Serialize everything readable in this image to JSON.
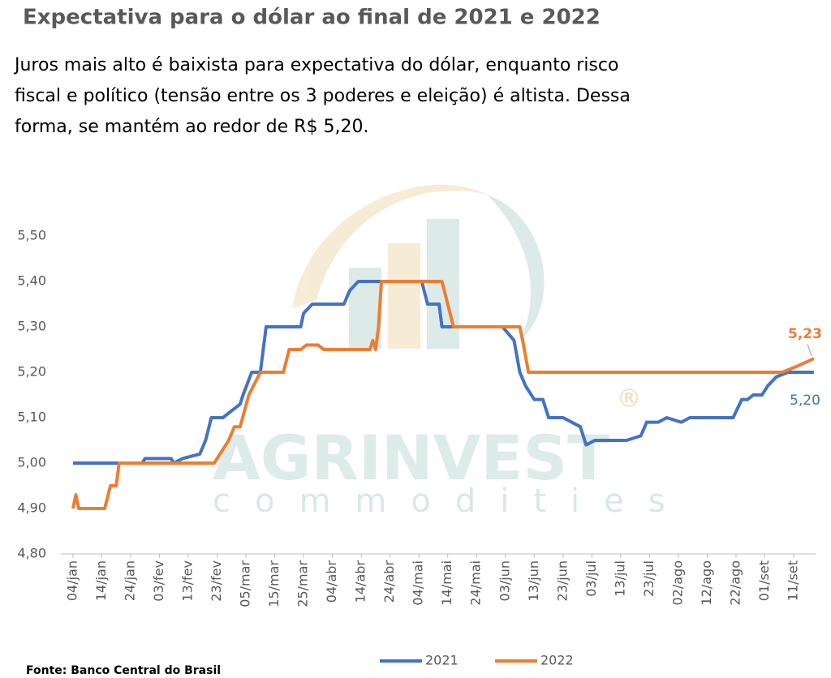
{
  "chart_data": {
    "type": "line",
    "title": "Expectativa para o dólar ao final de 2021 e 2022",
    "subtitle": [
      "Juros mais alto é baixista para expectativa do dólar, enquanto risco",
      "fiscal e político (tensão entre os 3 poderes e eleição) é altista. Dessa",
      "forma, se mantém ao redor de R$ 5,20."
    ],
    "source": "Fonte: Banco Central do Brasil",
    "watermark": [
      "AGRINVEST",
      "commodities",
      "®"
    ],
    "xlim": [
      -4.2,
      257.6
    ],
    "xticks": [
      {
        "value": 0,
        "label": "04/jan"
      },
      {
        "value": 10,
        "label": "14/jan"
      },
      {
        "value": 20,
        "label": "24/jan"
      },
      {
        "value": 30,
        "label": "03/fev"
      },
      {
        "value": 40,
        "label": "13/fev"
      },
      {
        "value": 50,
        "label": "23/fev"
      },
      {
        "value": 60,
        "label": "05/mar"
      },
      {
        "value": 70,
        "label": "15/mar"
      },
      {
        "value": 80,
        "label": "25/mar"
      },
      {
        "value": 90,
        "label": "04/abr"
      },
      {
        "value": 100,
        "label": "14/abr"
      },
      {
        "value": 110,
        "label": "24/abr"
      },
      {
        "value": 120,
        "label": "04/mai"
      },
      {
        "value": 130,
        "label": "14/mai"
      },
      {
        "value": 140,
        "label": "24/mai"
      },
      {
        "value": 150,
        "label": "03/jun"
      },
      {
        "value": 160,
        "label": "13/jun"
      },
      {
        "value": 170,
        "label": "23/jun"
      },
      {
        "value": 180,
        "label": "03/jul"
      },
      {
        "value": 190,
        "label": "13/jul"
      },
      {
        "value": 200,
        "label": "23/jul"
      },
      {
        "value": 210,
        "label": "02/ago"
      },
      {
        "value": 220,
        "label": "12/ago"
      },
      {
        "value": 230,
        "label": "22/ago"
      },
      {
        "value": 240,
        "label": "01/set"
      },
      {
        "value": 250,
        "label": "11/set"
      }
    ],
    "ylim": [
      4.8,
      5.5
    ],
    "yticks": [
      {
        "value": 4.8,
        "label": "4,80"
      },
      {
        "value": 4.9,
        "label": "4,90"
      },
      {
        "value": 5.0,
        "label": "5,00"
      },
      {
        "value": 5.1,
        "label": "5,10"
      },
      {
        "value": 5.2,
        "label": "5,20"
      },
      {
        "value": 5.3,
        "label": "5,30"
      },
      {
        "value": 5.4,
        "label": "5,40"
      },
      {
        "value": 5.5,
        "label": "5,50"
      }
    ],
    "series": [
      {
        "name": "2021",
        "color": "#4472c4",
        "end_label": "5,20",
        "x": [
          0,
          24,
          25,
          34,
          35,
          38,
          44,
          46,
          48,
          52,
          56,
          58,
          59,
          62,
          65,
          67,
          79,
          80,
          83,
          94,
          96,
          99,
          121,
          123,
          127,
          128,
          149,
          153,
          155,
          157,
          160,
          163,
          165,
          170,
          176,
          178,
          181,
          192,
          197,
          199,
          203,
          206,
          211,
          214,
          229,
          232,
          234,
          236,
          239,
          241,
          244,
          248,
          257
        ],
        "values": [
          5.0,
          5.0,
          5.01,
          5.01,
          5.0,
          5.01,
          5.02,
          5.05,
          5.1,
          5.1,
          5.12,
          5.13,
          5.15,
          5.2,
          5.2,
          5.3,
          5.3,
          5.33,
          5.35,
          5.35,
          5.38,
          5.4,
          5.4,
          5.35,
          5.35,
          5.3,
          5.3,
          5.27,
          5.2,
          5.17,
          5.14,
          5.14,
          5.1,
          5.1,
          5.08,
          5.04,
          5.05,
          5.05,
          5.06,
          5.09,
          5.09,
          5.1,
          5.09,
          5.1,
          5.1,
          5.14,
          5.14,
          5.15,
          5.15,
          5.17,
          5.19,
          5.2,
          5.2
        ]
      },
      {
        "name": "2022",
        "color": "#ed7d31",
        "end_label": "5,23",
        "x": [
          0,
          1,
          2,
          11,
          13,
          15,
          16,
          49,
          51,
          54,
          56,
          58,
          61,
          65,
          73,
          75,
          79,
          81,
          85,
          87,
          103,
          104,
          105,
          106,
          107,
          128,
          132,
          155,
          156,
          158,
          246,
          250,
          257
        ],
        "values": [
          4.9,
          4.93,
          4.9,
          4.9,
          4.95,
          4.95,
          5.0,
          5.0,
          5.02,
          5.05,
          5.08,
          5.08,
          5.15,
          5.2,
          5.2,
          5.25,
          5.25,
          5.26,
          5.26,
          5.25,
          5.25,
          5.27,
          5.25,
          5.3,
          5.4,
          5.4,
          5.3,
          5.3,
          5.27,
          5.2,
          5.2,
          5.21,
          5.23
        ]
      }
    ]
  }
}
